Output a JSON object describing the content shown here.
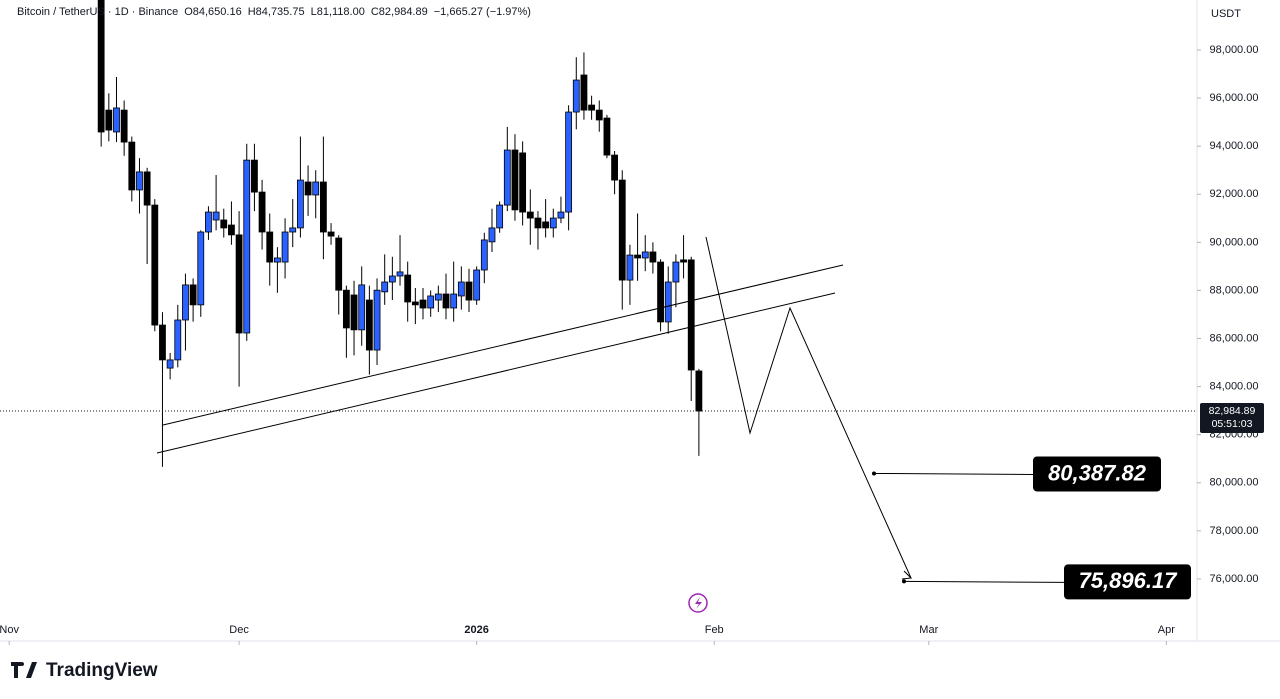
{
  "chart_data": {
    "type": "candlestick",
    "symbol": "Bitcoin / TetherUS · 1D · Binance",
    "header_values": [
      "O84,650.16",
      "H84,735.75",
      "L81,118.00",
      "C82,984.89",
      "−1,665.27 (−1.97%)"
    ],
    "currency": "USDT",
    "x": [
      12,
      13,
      14,
      15,
      16,
      17,
      18,
      19,
      20,
      21,
      22,
      23,
      24,
      25,
      26,
      27,
      28,
      29,
      30,
      31,
      32,
      33,
      34,
      35,
      36,
      37,
      38,
      39,
      40,
      41,
      42,
      43,
      44,
      45,
      46,
      47,
      48,
      49,
      50,
      51,
      52,
      53,
      54,
      55,
      56,
      57,
      58,
      59,
      60,
      61,
      62,
      63,
      64,
      65,
      66,
      67,
      68,
      69,
      70,
      71,
      72,
      73,
      74,
      75,
      76,
      77,
      78,
      79,
      80,
      81,
      82,
      83,
      84,
      85,
      86,
      87,
      88,
      89,
      90
    ],
    "open": [
      100800,
      95500,
      94590,
      95500,
      94170,
      92180,
      92930,
      91550,
      86560,
      84770,
      85110,
      86770,
      88230,
      87400,
      90430,
      90930,
      90930,
      90720,
      90310,
      86230,
      93420,
      92090,
      90430,
      89180,
      89180,
      90430,
      90600,
      92510,
      91970,
      92510,
      90430,
      90180,
      88010,
      87810,
      86360,
      87600,
      85520,
      87940,
      88350,
      88600,
      88640,
      87520,
      87600,
      87270,
      87600,
      87850,
      87270,
      87770,
      88350,
      87600,
      88850,
      90020,
      90600,
      91550,
      93840,
      93720,
      91260,
      91010,
      90850,
      90600,
      91010,
      91260,
      95420,
      96960,
      95710,
      95500,
      95170,
      93630,
      92590,
      88430,
      89470,
      89350,
      89600,
      89180,
      86690,
      88350,
      89270,
      89270,
      84650.16
    ],
    "high": [
      101200,
      96200,
      96880,
      95900,
      94400,
      93500,
      93100,
      91800,
      87100,
      85400,
      87400,
      88700,
      88500,
      90500,
      91500,
      92800,
      91400,
      91700,
      91300,
      94100,
      94100,
      92600,
      91200,
      89800,
      91000,
      91800,
      94400,
      93200,
      93000,
      94400,
      90800,
      90300,
      88200,
      88400,
      89000,
      88200,
      88500,
      89500,
      89400,
      90300,
      89200,
      88100,
      88100,
      88000,
      88200,
      88700,
      89200,
      89000,
      88900,
      89000,
      90400,
      91400,
      91700,
      94800,
      94500,
      94200,
      92200,
      91300,
      91800,
      91400,
      91900,
      95700,
      97700,
      97900,
      96100,
      95900,
      95300,
      93800,
      93000,
      89900,
      91200,
      90300,
      90000,
      89300,
      89000,
      89500,
      90300,
      89400,
      84735.75
    ],
    "low": [
      93980,
      94200,
      94170,
      93600,
      91700,
      91200,
      89100,
      86300,
      80660,
      84300,
      84800,
      85500,
      86700,
      86900,
      90100,
      90500,
      90200,
      89900,
      84000,
      85900,
      91300,
      89700,
      88200,
      87900,
      88500,
      89800,
      90200,
      91100,
      91000,
      89300,
      89900,
      87000,
      85200,
      85300,
      85700,
      84500,
      84900,
      87400,
      87600,
      88200,
      86700,
      86600,
      86800,
      86900,
      87100,
      86800,
      86700,
      87200,
      87100,
      87400,
      88300,
      89600,
      90400,
      91300,
      90900,
      90700,
      89900,
      89700,
      90200,
      90200,
      90800,
      90500,
      94700,
      95100,
      95100,
      94600,
      93500,
      92000,
      87200,
      87400,
      88400,
      88800,
      88700,
      86300,
      86200,
      87300,
      88500,
      83400,
      81118
    ],
    "close": [
      94590,
      94670,
      95590,
      94170,
      92180,
      92930,
      91550,
      86560,
      85110,
      85110,
      86770,
      88230,
      87400,
      90430,
      91260,
      91260,
      90600,
      90310,
      86230,
      93420,
      92090,
      90430,
      89180,
      89350,
      90430,
      90600,
      92590,
      91970,
      92510,
      90430,
      90260,
      88010,
      86440,
      86360,
      88230,
      85520,
      88010,
      88350,
      88600,
      88770,
      87520,
      87400,
      87270,
      87770,
      87850,
      87270,
      87850,
      88350,
      87600,
      88850,
      90100,
      90600,
      91550,
      93840,
      91350,
      91260,
      91010,
      90600,
      90600,
      91010,
      91260,
      95420,
      96750,
      95500,
      95500,
      95090,
      93630,
      92590,
      88430,
      89470,
      89350,
      89600,
      89180,
      86690,
      88350,
      89180,
      89180,
      84690,
      82984.89
    ],
    "up_color": "#2962ff",
    "down_color": "#000000",
    "xlim": [
      -1.2,
      155
    ],
    "xticks": [
      {
        "value": 0,
        "label": "Nov"
      },
      {
        "value": 30,
        "label": "Dec"
      },
      {
        "value": 61,
        "label": "2026"
      },
      {
        "value": 92,
        "label": "Feb"
      },
      {
        "value": 120,
        "label": "Mar"
      },
      {
        "value": 151,
        "label": "Apr"
      }
    ],
    "ylim": [
      73460,
      100080
    ],
    "yticks": [
      {
        "value": 76000,
        "label": "76,000.00"
      },
      {
        "value": 78000,
        "label": "78,000.00"
      },
      {
        "value": 80000,
        "label": "80,000.00"
      },
      {
        "value": 82000,
        "label": "82,000.00"
      },
      {
        "value": 84000,
        "label": "84,000.00"
      },
      {
        "value": 86000,
        "label": "86,000.00"
      },
      {
        "value": 88000,
        "label": "88,000.00"
      },
      {
        "value": 90000,
        "label": "90,000.00"
      },
      {
        "value": 92000,
        "label": "92,000.00"
      },
      {
        "value": 94000,
        "label": "94,000.00"
      },
      {
        "value": 96000,
        "label": "96,000.00"
      },
      {
        "value": 98000,
        "label": "98,000.00"
      }
    ],
    "last_price_label": "82,984.89",
    "countdown": "05:51:03",
    "targets": [
      {
        "value": 80387.82,
        "label": "80,387.82"
      },
      {
        "value": 75896.17,
        "label": "75,896.17"
      }
    ]
  },
  "brand": "TradingView"
}
